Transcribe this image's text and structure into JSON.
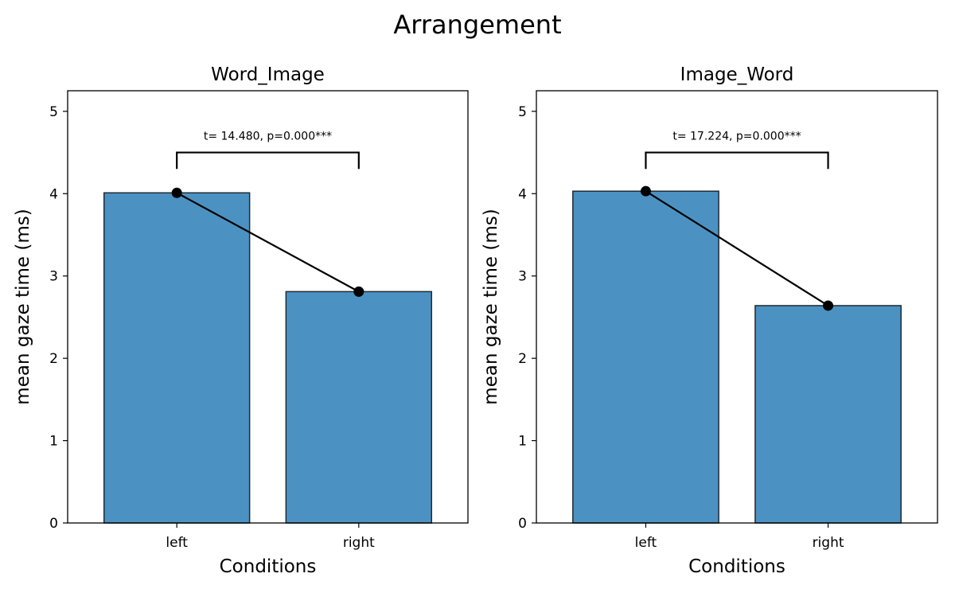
{
  "figure": {
    "title": "Arrangement"
  },
  "chart_data": [
    {
      "type": "bar",
      "title": "Word_Image",
      "xlabel": "Conditions",
      "ylabel": "mean gaze time (ms)",
      "categories": [
        "left",
        "right"
      ],
      "values": [
        4.01,
        2.81
      ],
      "ylim": [
        0,
        5.25
      ],
      "yticks": [
        0,
        1,
        2,
        3,
        4,
        5
      ],
      "grid": false,
      "bar_color": "#4b92c3",
      "bar_edge_color": "#1f2a33",
      "line_color": "#000000",
      "annotation": "t= 14.480, p=0.000***",
      "bracket_top": 4.5,
      "bracket_bottom": 4.3
    },
    {
      "type": "bar",
      "title": "Image_Word",
      "xlabel": "Conditions",
      "ylabel": "mean gaze time (ms)",
      "categories": [
        "left",
        "right"
      ],
      "values": [
        4.03,
        2.64
      ],
      "ylim": [
        0,
        5.25
      ],
      "yticks": [
        0,
        1,
        2,
        3,
        4,
        5
      ],
      "grid": false,
      "bar_color": "#4b92c3",
      "bar_edge_color": "#1f2a33",
      "line_color": "#000000",
      "annotation": "t= 17.224, p=0.000***",
      "bracket_top": 4.5,
      "bracket_bottom": 4.3
    }
  ]
}
